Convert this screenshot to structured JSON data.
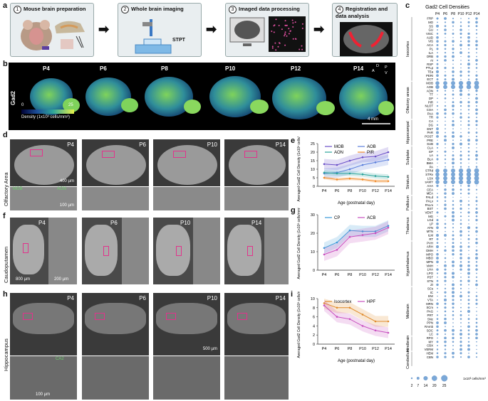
{
  "panels": {
    "a": {
      "letter": "a",
      "steps": [
        {
          "num": "1",
          "title": "Mouse brain preparation"
        },
        {
          "num": "2",
          "title": "Whole brain imaging",
          "device": "STPT"
        },
        {
          "num": "3",
          "title": "Imaged data processing"
        },
        {
          "num": "4",
          "title": "Registration and data analysis"
        }
      ]
    },
    "b": {
      "letter": "b",
      "marker": "Gad2",
      "ages": [
        "P4",
        "P6",
        "P8",
        "P10",
        "P12",
        "P14"
      ],
      "colorbar_min": "0",
      "colorbar_max": "25",
      "colorbar_label": "Density (1x10³ cells/mm³)",
      "scalebar": "4 mm",
      "orient": {
        "d": "D",
        "a": "A",
        "p": "P",
        "v": "V"
      }
    },
    "d": {
      "letter": "d",
      "region": "Olfactory Area",
      "ages": [
        "P4",
        "P6",
        "P10",
        "P14"
      ],
      "sub_labels": [
        "MOB",
        "AON"
      ],
      "scale_big": "400 µm",
      "scale_small": "100 µm"
    },
    "f": {
      "letter": "f",
      "region": "Caudoputamen",
      "ages": [
        "P4",
        "P6",
        "P10",
        "P14"
      ],
      "scale_big": "800 µm",
      "scale_small": "200 µm"
    },
    "h": {
      "letter": "h",
      "region": "Hippocampus",
      "ages": [
        "P4",
        "P6",
        "P10",
        "P14"
      ],
      "sub_label": "CA2",
      "scale_big": "500 µm",
      "scale_small": "100 µm"
    },
    "c": {
      "letter": "c",
      "title": "Gad2 Cell Densities",
      "ages": [
        "P4",
        "P6",
        "P8",
        "P10",
        "P12",
        "P14"
      ],
      "groups": [
        "Isocortex",
        "Olfactory areas",
        "Hippocampal",
        "Subplate",
        "Striatum",
        "Pallidum",
        "Thalamus",
        "Hypothalamus",
        "Midbrain",
        "Hindbrain",
        "Cerebellum"
      ],
      "regions": [
        "FRP",
        "MO",
        "SS",
        "GU",
        "VISC",
        "AUD",
        "VIS",
        "ACA",
        "PL",
        "ILA",
        "ORB",
        "AI",
        "RSP",
        "PTLp",
        "TEa",
        "PERI",
        "ECT",
        "MOB",
        "AOB",
        "AON",
        "TT",
        "DP",
        "PIR",
        "NLOT",
        "COA",
        "PAA",
        "TR",
        "CA",
        "DG",
        "ENT",
        "PAR",
        "POST",
        "PRE",
        "SUB",
        "CLA",
        "EP",
        "LA",
        "BLA",
        "BMA",
        "PA",
        "STRd",
        "STRv",
        "LSX",
        "sAMY",
        "AAA",
        "CEA",
        "MEA",
        "PALd",
        "PALv",
        "PALm",
        "BST",
        "VENT",
        "MG",
        "LGd",
        "LP",
        "ATN",
        "MTN",
        "ILM",
        "RT",
        "PVH",
        "ARH",
        "DMH",
        "MPO",
        "MBO",
        "MPN",
        "VMH",
        "LHA",
        "LPO",
        "PST",
        "STN",
        "ZI",
        "SCs",
        "IC",
        "SNr",
        "VTA",
        "MRN",
        "SCm",
        "PAG",
        "PRT",
        "SNc",
        "PPN",
        "RAmb",
        "SOC",
        "LC",
        "RPO",
        "MY",
        "CBX",
        "VERM",
        "HEM",
        "CBN"
      ],
      "legend_sizes": [
        "2",
        "7",
        "14",
        "20",
        "25"
      ],
      "legend_unit": "1x10³ cells/mm³"
    }
  },
  "chart_data": [
    {
      "id": "e",
      "type": "line",
      "ylabel": "Averaged Gad2 Cell Density (1x10³ cells/mm³)",
      "xlabel": "Age (postnatal day)",
      "categories": [
        "P4",
        "P6",
        "P8",
        "P10",
        "P12",
        "P14"
      ],
      "ylim": [
        0,
        25
      ],
      "yticks": [
        "0",
        "5",
        "10",
        "15",
        "20",
        "25"
      ],
      "series": [
        {
          "name": "MOB",
          "color": "#6a4fc8",
          "values": [
            13,
            12.5,
            15,
            17,
            17.5,
            20
          ],
          "band": [
            3,
            3,
            3,
            3,
            3,
            3
          ]
        },
        {
          "name": "AOB",
          "color": "#5b7fdc",
          "values": [
            7.5,
            8,
            10,
            12.5,
            14,
            15.5
          ],
          "band": [
            3,
            3,
            3,
            3,
            3,
            3
          ]
        },
        {
          "name": "AON",
          "color": "#2aa39a",
          "values": [
            8,
            7.5,
            7.5,
            7,
            6,
            5.5
          ],
          "band": [
            1.5,
            1.5,
            1.5,
            1.5,
            1.5,
            1.5
          ]
        },
        {
          "name": "PIR",
          "color": "#f08a2a",
          "values": [
            5,
            4,
            4.5,
            4,
            3,
            3
          ],
          "band": [
            1,
            1,
            1,
            1,
            1,
            1
          ]
        }
      ]
    },
    {
      "id": "g",
      "type": "line",
      "ylabel": "Averaged Gad2 Cell Density (1x10³ cells/mm³)",
      "xlabel": "",
      "categories": [
        "P4",
        "P6",
        "P8",
        "P10",
        "P12",
        "P14"
      ],
      "ylim": [
        0,
        30
      ],
      "yticks": [
        "0",
        "10",
        "20",
        "30"
      ],
      "series": [
        {
          "name": "CP",
          "color": "#3a9ad9",
          "values": [
            12,
            15,
            21.5,
            21,
            21,
            24
          ],
          "band": [
            3,
            3,
            3,
            3,
            3,
            3
          ]
        },
        {
          "name": "ACB",
          "color": "#c84fbf",
          "values": [
            8.5,
            11,
            18,
            19,
            20,
            23
          ],
          "band": [
            3.5,
            3.5,
            3.5,
            3.5,
            3.5,
            3.5
          ]
        }
      ]
    },
    {
      "id": "i",
      "type": "line",
      "ylabel": "Averaged Gad2 Cell Density (1x10³ cells/mm³)",
      "xlabel": "Age (postnatal day)",
      "categories": [
        "P4",
        "P6",
        "P8",
        "P10",
        "P12",
        "P14"
      ],
      "ylim": [
        0,
        10
      ],
      "yticks": [
        "0",
        "2",
        "4",
        "6",
        "8",
        "10"
      ],
      "series": [
        {
          "name": "Isocortex",
          "color": "#e08a2a",
          "values": [
            9,
            8,
            8,
            6.5,
            5,
            5
          ],
          "band": [
            1.2,
            1.2,
            1.2,
            1.2,
            1.2,
            1.2
          ]
        },
        {
          "name": "HPF",
          "color": "#c84fbf",
          "values": [
            8.5,
            6,
            5.5,
            4,
            3,
            2.5
          ],
          "band": [
            1.2,
            1.2,
            1.2,
            1.2,
            1.2,
            1.2
          ]
        }
      ]
    }
  ]
}
